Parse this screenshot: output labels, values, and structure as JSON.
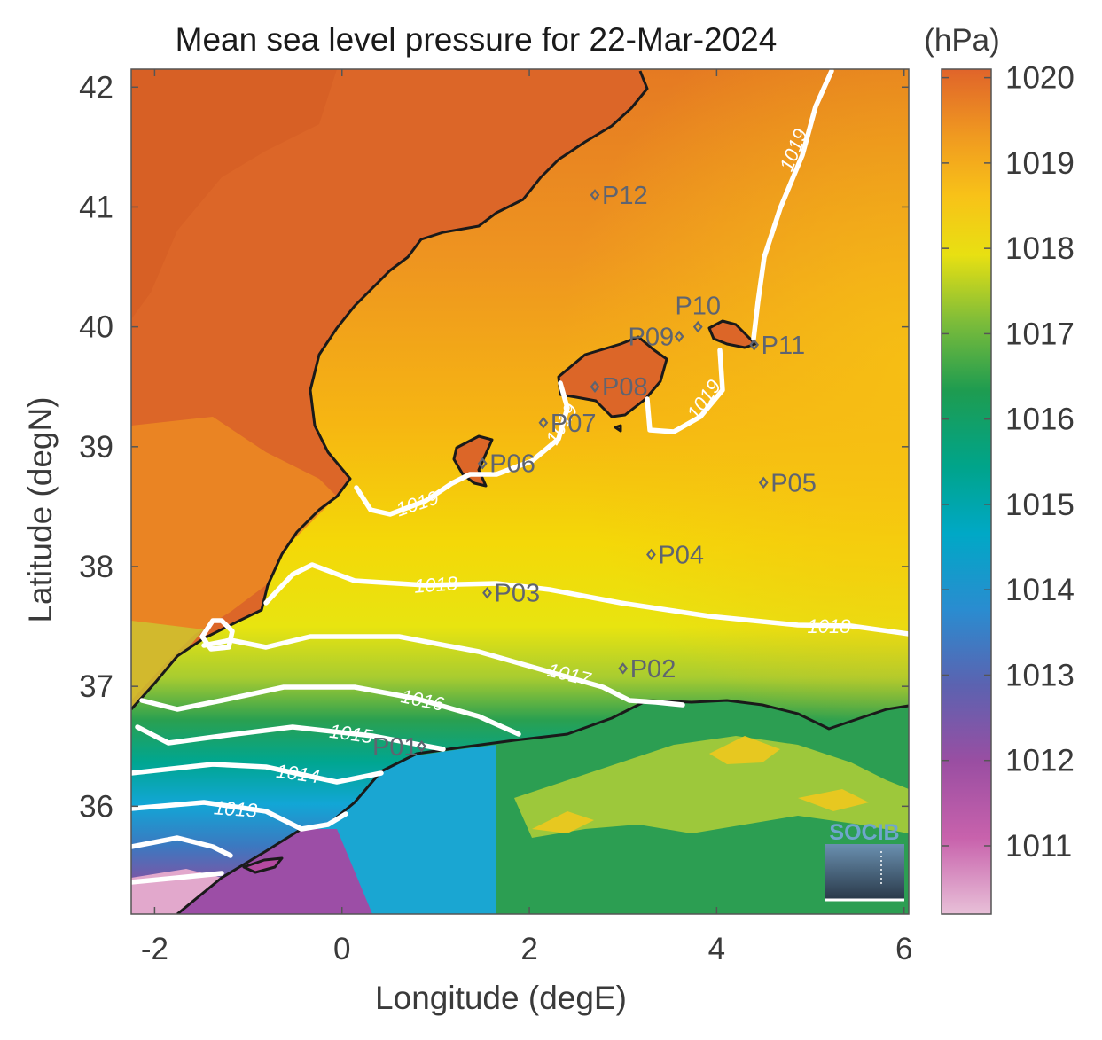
{
  "title": "Mean sea level pressure for 22-Mar-2024",
  "colorbar_unit": "(hPa)",
  "xlabel": "Longitude (degE)",
  "ylabel": "Latitude (degN)",
  "logo": "SOCIB",
  "chart_data": {
    "type": "heatmap",
    "title": "Mean sea level pressure for 22-Mar-2024",
    "xlabel": "Longitude (degE)",
    "ylabel": "Latitude (degN)",
    "xlim": [
      -2.25,
      6.05
    ],
    "ylim": [
      35.1,
      42.15
    ],
    "x_ticks": [
      -2,
      0,
      2,
      4,
      6
    ],
    "y_ticks": [
      36,
      37,
      38,
      39,
      40,
      41,
      42
    ],
    "colorbar": {
      "label": "(hPa)",
      "range": [
        1010.2,
        1020.1
      ],
      "ticks": [
        1011,
        1012,
        1013,
        1014,
        1015,
        1016,
        1017,
        1018,
        1019,
        1020
      ],
      "colormap": [
        "#e4b8d4",
        "#c050a0",
        "#8050a0",
        "#3a7cc0",
        "#13a9dc",
        "#00a6a6",
        "#0a9a5e",
        "#a0c832",
        "#f0e000",
        "#f8b818",
        "#e06828"
      ]
    },
    "contour_labels": [
      "1013",
      "1014",
      "1015",
      "1016",
      "1017",
      "1018",
      "1018",
      "1019",
      "1019",
      "1019",
      "1019"
    ],
    "stations": [
      {
        "name": "P01",
        "lon": 0.85,
        "lat": 36.5
      },
      {
        "name": "P02",
        "lon": 3.0,
        "lat": 37.15
      },
      {
        "name": "P03",
        "lon": 1.55,
        "lat": 37.78
      },
      {
        "name": "P04",
        "lon": 3.3,
        "lat": 38.1
      },
      {
        "name": "P05",
        "lon": 4.5,
        "lat": 38.7
      },
      {
        "name": "P06",
        "lon": 1.5,
        "lat": 38.86
      },
      {
        "name": "P07",
        "lon": 2.15,
        "lat": 39.2
      },
      {
        "name": "P08",
        "lon": 2.7,
        "lat": 39.5
      },
      {
        "name": "P09",
        "lon": 3.6,
        "lat": 39.92
      },
      {
        "name": "P10",
        "lon": 3.8,
        "lat": 40.0
      },
      {
        "name": "P11",
        "lon": 4.4,
        "lat": 39.85
      },
      {
        "name": "P12",
        "lon": 2.7,
        "lat": 41.1
      }
    ]
  }
}
